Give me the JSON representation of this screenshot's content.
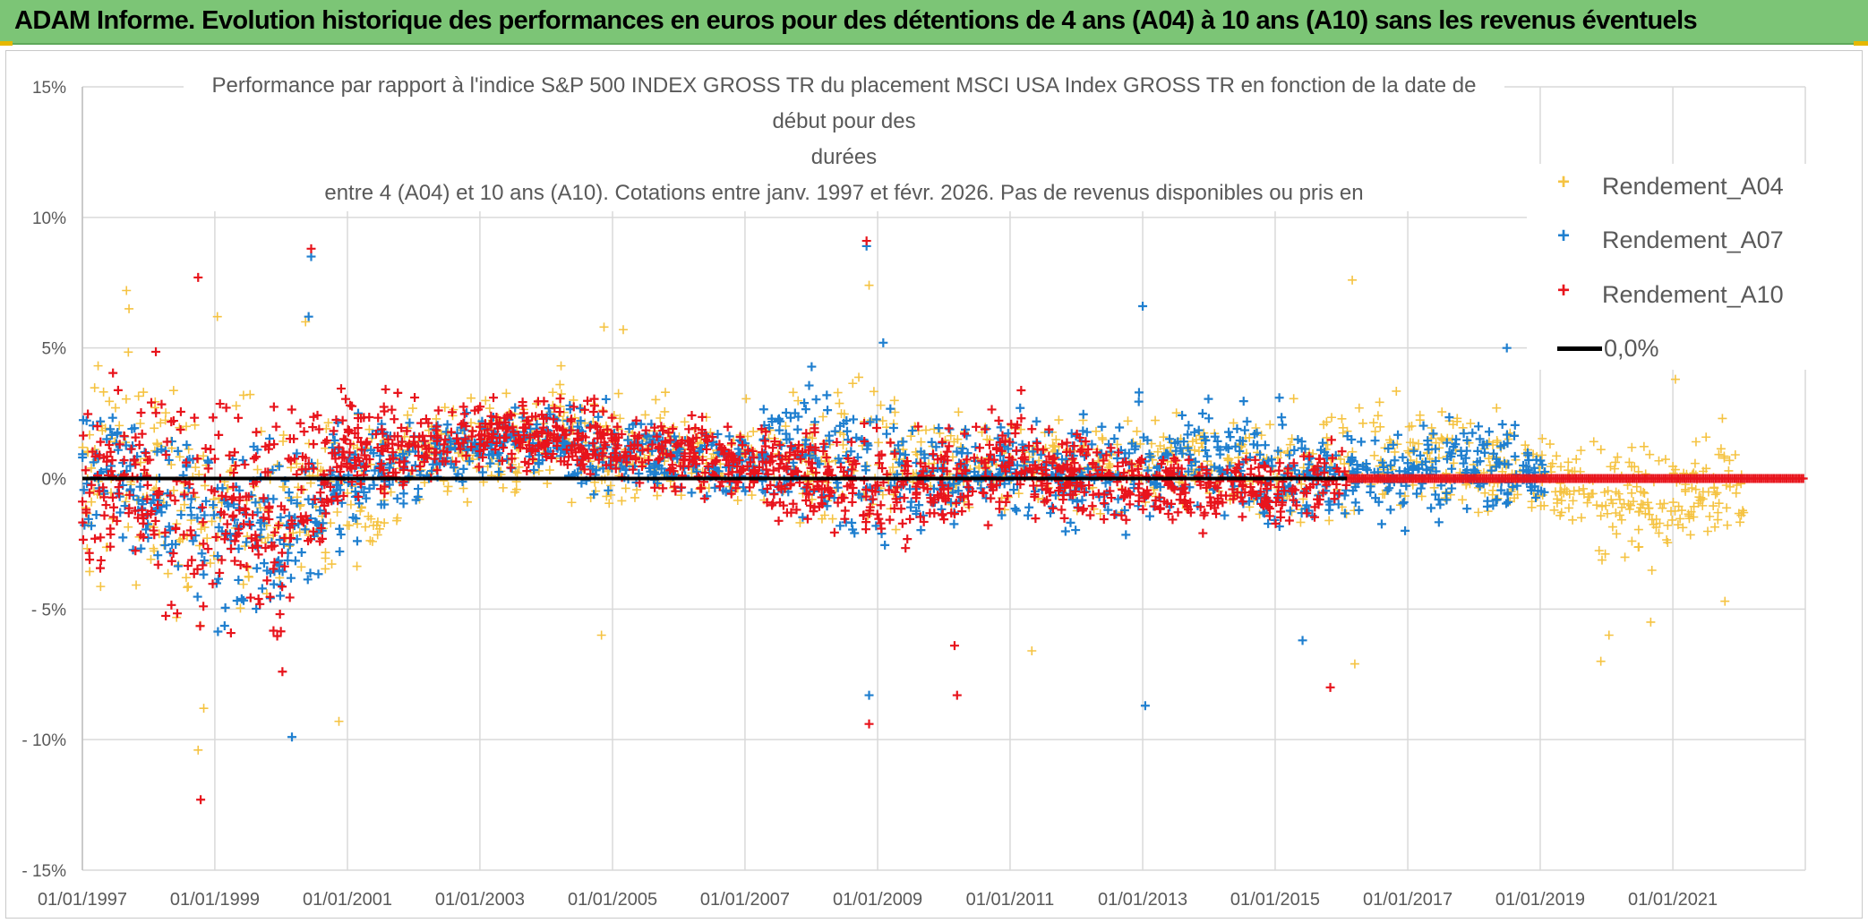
{
  "banner": {
    "title": "ADAM Informe. Evolution historique des performances en euros pour des détentions de 4 ans (A04) à 10 ans (A10) sans les revenus éventuels"
  },
  "colors": {
    "banner_bg": "#7cc576",
    "corner_accent": "#e6b800",
    "series_A04": "#f5c342",
    "series_A07": "#1f7fcf",
    "series_A10": "#e8141c",
    "zero_line": "#000000"
  },
  "chart_data": {
    "type": "scatter",
    "title_lines": [
      "Performance par rapport à l'indice S&P 500 INDEX GROSS TR  du placement MSCI USA Index GROSS TR en fonction de la date de début pour des",
      "durées",
      "entre 4 (A04) et 10 ans (A10). Cotations entre janv. 1997 et févr. 2026. Pas de revenus disponibles ou pris en"
    ],
    "x_axis": {
      "type": "date",
      "range": [
        "1997-01-01",
        "2023-01-01"
      ],
      "tick_labels": [
        "01/01/1997",
        "01/01/1999",
        "01/01/2001",
        "01/01/2003",
        "01/01/2005",
        "01/01/2007",
        "01/01/2009",
        "01/01/2011",
        "01/01/2013",
        "01/01/2015",
        "01/01/2017",
        "01/01/2019",
        "01/01/2021"
      ]
    },
    "y_axis": {
      "range": [
        -15,
        15
      ],
      "unit": "%",
      "tick_values": [
        15,
        10,
        5,
        0,
        -5,
        -10,
        -15
      ],
      "tick_labels": [
        "15%",
        "10%",
        "5%",
        "0%",
        "- 5%",
        "- 10%",
        "- 15%"
      ]
    },
    "grid": true,
    "legend_position": "right",
    "series": [
      {
        "name": "Rendement_A04",
        "marker": "+",
        "x_range": [
          "1997-01-01",
          "2022-02-01"
        ],
        "band": [
          [
            "1997-01-01",
            -5,
            5.5
          ],
          [
            "1998-01-01",
            -6,
            6
          ],
          [
            "1999-01-01",
            -8,
            5
          ],
          [
            "2000-01-01",
            -6,
            5
          ],
          [
            "2001-01-01",
            -6,
            3
          ],
          [
            "2002-01-01",
            -2,
            3.5
          ],
          [
            "2003-01-01",
            -1,
            3.5
          ],
          [
            "2004-01-01",
            -1,
            4.5
          ],
          [
            "2005-01-01",
            -2,
            4
          ],
          [
            "2006-01-01",
            -1.5,
            3.5
          ],
          [
            "2007-01-01",
            -2,
            3.5
          ],
          [
            "2008-01-01",
            -3,
            4
          ],
          [
            "2009-01-01",
            -3,
            5
          ],
          [
            "2010-01-01",
            -2,
            3
          ],
          [
            "2011-01-01",
            -2,
            3
          ],
          [
            "2012-01-01",
            -2,
            3
          ],
          [
            "2013-01-01",
            -2,
            3
          ],
          [
            "2014-01-01",
            -2,
            3
          ],
          [
            "2015-01-01",
            -2.5,
            3
          ],
          [
            "2016-01-01",
            -2,
            4
          ],
          [
            "2017-01-01",
            -2,
            4
          ],
          [
            "2018-01-01",
            -2,
            3.5
          ],
          [
            "2019-01-01",
            -2,
            2.5
          ],
          [
            "2020-01-01",
            -4,
            2.5
          ],
          [
            "2021-01-01",
            -4,
            2.5
          ],
          [
            "2022-02-01",
            -3,
            2
          ]
        ],
        "outliers": [
          [
            "1997-09-01",
            7.2
          ],
          [
            "1997-09-15",
            6.5
          ],
          [
            "1998-10-01",
            -10.4
          ],
          [
            "1998-11-01",
            -8.8
          ],
          [
            "1999-01-15",
            6.2
          ],
          [
            "2000-05-15",
            6.0
          ],
          [
            "2000-11-15",
            -9.3
          ],
          [
            "2004-11-01",
            -6.0
          ],
          [
            "2004-11-15",
            5.8
          ],
          [
            "2005-03-01",
            5.7
          ],
          [
            "2008-11-15",
            7.4
          ],
          [
            "2011-05-01",
            -6.6
          ],
          [
            "2016-03-01",
            7.6
          ],
          [
            "2016-03-15",
            -7.1
          ],
          [
            "2019-12-01",
            -7.0
          ],
          [
            "2020-01-15",
            -6.0
          ],
          [
            "2020-09-01",
            -5.5
          ],
          [
            "2021-01-15",
            3.8
          ],
          [
            "2021-10-15",
            -4.7
          ],
          [
            "2021-10-01",
            2.3
          ]
        ]
      },
      {
        "name": "Rendement_A07",
        "marker": "+",
        "x_range": [
          "1997-01-01",
          "2019-02-01"
        ],
        "band": [
          [
            "1997-01-01",
            -3,
            5
          ],
          [
            "1998-01-01",
            -5,
            4
          ],
          [
            "1999-01-01",
            -7,
            3
          ],
          [
            "2000-01-01",
            -8,
            3
          ],
          [
            "2001-01-01",
            -3,
            3
          ],
          [
            "2002-01-01",
            -1.5,
            3
          ],
          [
            "2003-01-01",
            -0.5,
            3
          ],
          [
            "2004-01-01",
            -0.5,
            3.5
          ],
          [
            "2005-01-01",
            -1,
            3
          ],
          [
            "2006-01-01",
            -1,
            3
          ],
          [
            "2007-01-01",
            -1.5,
            2.5
          ],
          [
            "2008-01-01",
            -2.5,
            4.5
          ],
          [
            "2009-01-01",
            -4,
            4
          ],
          [
            "2010-01-01",
            -2,
            2.5
          ],
          [
            "2011-01-01",
            -2,
            3
          ],
          [
            "2012-01-01",
            -2.5,
            2.5
          ],
          [
            "2013-01-01",
            -3,
            3.5
          ],
          [
            "2014-01-01",
            -2,
            4
          ],
          [
            "2015-01-01",
            -3,
            3.5
          ],
          [
            "2016-01-01",
            -2,
            2
          ],
          [
            "2017-01-01",
            -2.5,
            3
          ],
          [
            "2018-01-01",
            -2.5,
            4
          ],
          [
            "2019-02-01",
            -1.5,
            1.5
          ]
        ],
        "outliers": [
          [
            "2000-06-15",
            8.5
          ],
          [
            "2000-06-01",
            6.2
          ],
          [
            "2000-03-01",
            -9.9
          ],
          [
            "2008-11-01",
            8.9
          ],
          [
            "2008-11-15",
            -8.3
          ],
          [
            "2009-02-01",
            5.2
          ],
          [
            "2013-01-01",
            6.6
          ],
          [
            "2013-01-15",
            -8.7
          ],
          [
            "2015-06-01",
            -6.2
          ],
          [
            "2018-07-01",
            5.0
          ]
        ]
      },
      {
        "name": "Rendement_A10",
        "marker": "+",
        "x_range": [
          "1997-01-01",
          "2016-02-01"
        ],
        "band": [
          [
            "1997-01-01",
            -5,
            5
          ],
          [
            "1998-01-01",
            -6,
            5
          ],
          [
            "1999-01-01",
            -7,
            5
          ],
          [
            "2000-01-01",
            -8,
            4
          ],
          [
            "2001-01-01",
            -2,
            4.5
          ],
          [
            "2002-01-01",
            -1,
            3.5
          ],
          [
            "2003-01-01",
            0,
            3.5
          ],
          [
            "2004-01-01",
            0,
            3.5
          ],
          [
            "2005-01-01",
            -0.5,
            3
          ],
          [
            "2006-01-01",
            -1,
            3
          ],
          [
            "2007-01-01",
            -1.5,
            2.5
          ],
          [
            "2008-01-01",
            -2.5,
            3
          ],
          [
            "2009-01-01",
            -4,
            3
          ],
          [
            "2010-01-01",
            -3,
            3
          ],
          [
            "2011-01-01",
            -2,
            3.5
          ],
          [
            "2012-01-01",
            -2.5,
            2.5
          ],
          [
            "2013-01-01",
            -2.5,
            2
          ],
          [
            "2014-01-01",
            -2.5,
            1.5
          ],
          [
            "2015-01-01",
            -3,
            2
          ],
          [
            "2016-02-01",
            -2,
            2
          ]
        ],
        "outliers": [
          [
            "1998-10-15",
            -12.3
          ],
          [
            "1998-10-01",
            7.7
          ],
          [
            "2000-06-15",
            8.8
          ],
          [
            "2008-11-01",
            9.1
          ],
          [
            "2008-11-15",
            -9.4
          ],
          [
            "2010-03-15",
            -8.3
          ],
          [
            "2010-03-01",
            -6.4
          ],
          [
            "2015-11-01",
            -8.0
          ]
        ],
        "flat_zero_after": "2016-02-01"
      }
    ],
    "reference_line": {
      "name": "0,0%",
      "y": 0,
      "x_range": [
        "1997-01-01",
        "2016-02-01"
      ]
    }
  }
}
